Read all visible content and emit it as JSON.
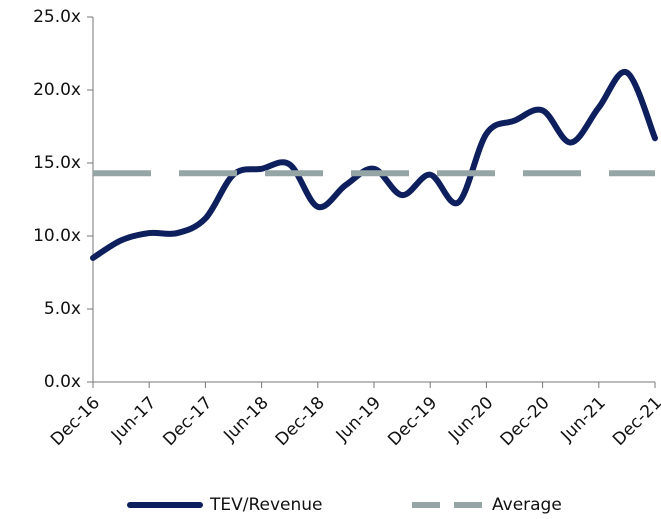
{
  "chart_data": {
    "type": "line",
    "categories": [
      "Dec-16",
      null,
      "Jun-17",
      null,
      "Dec-17",
      null,
      "Jun-18",
      null,
      "Dec-18",
      null,
      "Jun-19",
      null,
      "Dec-19",
      null,
      "Jun-20",
      null,
      "Dec-20",
      null,
      "Jun-21",
      null,
      "Dec-21"
    ],
    "series": [
      {
        "name": "TEV/Revenue",
        "color": "#0d1f5c",
        "dashed": false,
        "values": [
          8.5,
          9.7,
          10.2,
          10.2,
          11.2,
          14.2,
          14.6,
          14.9,
          12.0,
          13.5,
          14.6,
          12.8,
          14.2,
          12.3,
          17.0,
          17.9,
          18.6,
          16.4,
          18.8,
          21.2,
          16.7
        ]
      },
      {
        "name": "Average",
        "color": "#95a5a6",
        "dashed": true,
        "values": [
          14.3,
          14.3,
          14.3,
          14.3,
          14.3,
          14.3,
          14.3,
          14.3,
          14.3,
          14.3,
          14.3,
          14.3,
          14.3,
          14.3,
          14.3,
          14.3,
          14.3,
          14.3,
          14.3,
          14.3,
          14.3
        ]
      }
    ],
    "ylim": [
      0,
      25
    ],
    "yticks": [
      {
        "value": 0,
        "label": "0.0x"
      },
      {
        "value": 5,
        "label": "5.0x"
      },
      {
        "value": 10,
        "label": "10.0x"
      },
      {
        "value": 15,
        "label": "15.0x"
      },
      {
        "value": 20,
        "label": "20.0x"
      },
      {
        "value": 25,
        "label": "25.0x"
      }
    ],
    "legend": "bottom"
  }
}
